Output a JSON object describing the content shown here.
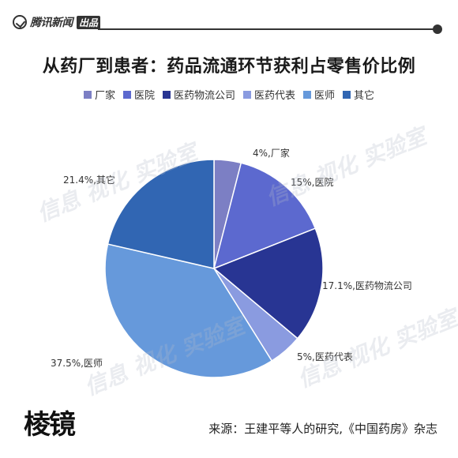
{
  "header": {
    "brand_name": "腾讯新闻",
    "brand_tag": "出品"
  },
  "colors": {
    "header_line": "#333333"
  },
  "watermark_text": "信息 视化 实验室",
  "chart_data": {
    "type": "pie",
    "title": "从药厂到患者：药品流通环节获利占零售价比例",
    "legend_position": "top",
    "start_angle_deg": 0,
    "direction": "clockwise",
    "slices": [
      {
        "name": "厂家",
        "value": 4,
        "label": "4%,厂家",
        "color": "#7C7FC4"
      },
      {
        "name": "医院",
        "value": 15,
        "label": "15%,医院",
        "color": "#5C69CF"
      },
      {
        "name": "医药物流公司",
        "value": 17.1,
        "label": "17.1%,医药物流公司",
        "color": "#283593"
      },
      {
        "name": "医药代表",
        "value": 5,
        "label": "5%,医药代表",
        "color": "#8A9BE0"
      },
      {
        "name": "医师",
        "value": 37.5,
        "label": "37.5%,医师",
        "color": "#6699DB"
      },
      {
        "name": "其它",
        "value": 21.4,
        "label": "21.4%,其它",
        "color": "#3166B3"
      }
    ]
  },
  "footer": {
    "logo_text": "棱镜",
    "source": "来源：王建平等人的研究,《中国药房》杂志"
  }
}
